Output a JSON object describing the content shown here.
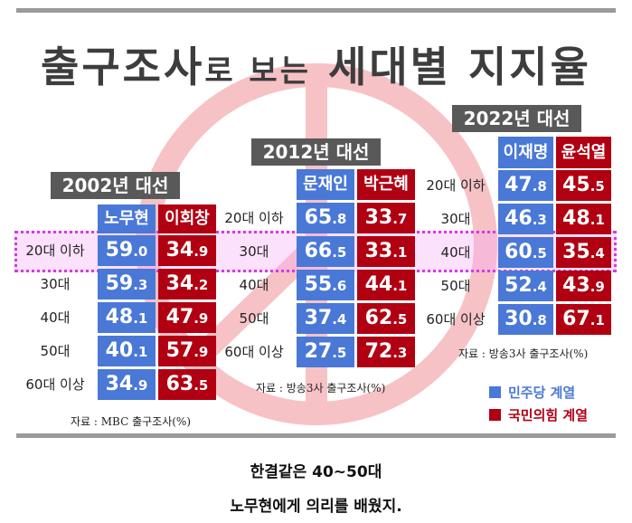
{
  "title_main": "출구조사",
  "title_small": "로 보는",
  "title_end": "세대별 지지율",
  "colors": {
    "democratic": "#4a78d6",
    "conservative": "#b00012",
    "highlight": "#d23be0"
  },
  "chart_data": [
    {
      "type": "table",
      "title": "2002년 대선",
      "candidates": [
        "노무현",
        "이회창"
      ],
      "rows": [
        {
          "label": "20대 이하",
          "values": [
            59.0,
            34.9
          ]
        },
        {
          "label": "30대",
          "values": [
            59.3,
            34.2
          ]
        },
        {
          "label": "40대",
          "values": [
            48.1,
            47.9
          ]
        },
        {
          "label": "50대",
          "values": [
            40.1,
            57.9
          ]
        },
        {
          "label": "60대 이상",
          "values": [
            34.9,
            63.5
          ]
        }
      ],
      "source": "자료 : MBC 출구조사(%)"
    },
    {
      "type": "table",
      "title": "2012년 대선",
      "candidates": [
        "문재인",
        "박근혜"
      ],
      "rows": [
        {
          "label": "20대 이하",
          "values": [
            65.8,
            33.7
          ]
        },
        {
          "label": "30대",
          "values": [
            66.5,
            33.1
          ]
        },
        {
          "label": "40대",
          "values": [
            55.6,
            44.1
          ]
        },
        {
          "label": "50대",
          "values": [
            37.4,
            62.5
          ]
        },
        {
          "label": "60대 이상",
          "values": [
            27.5,
            72.3
          ]
        }
      ],
      "source": "자료 : 방송3사 출구조사(%)"
    },
    {
      "type": "table",
      "title": "2022년 대선",
      "candidates": [
        "이재명",
        "윤석열"
      ],
      "rows": [
        {
          "label": "20대 이하",
          "values": [
            47.8,
            45.5
          ]
        },
        {
          "label": "30대",
          "values": [
            46.3,
            48.1
          ]
        },
        {
          "label": "40대",
          "values": [
            60.5,
            35.4
          ]
        },
        {
          "label": "50대",
          "values": [
            52.4,
            43.9
          ]
        },
        {
          "label": "60대 이상",
          "values": [
            30.8,
            67.1
          ]
        }
      ],
      "source": "자료 : 방송3사 출구조사(%)"
    }
  ],
  "highlighted_cohort": "2002년 20대 이하 → 2012년 30대 → 2022년 40대",
  "legend": [
    {
      "label": "민주당 계열",
      "color": "#4a78d6"
    },
    {
      "label": "국민의힘 계열",
      "color": "#b00012"
    }
  ],
  "caption": [
    "한결같은 40~50대",
    "노무현에게 의리를 배웠지."
  ]
}
